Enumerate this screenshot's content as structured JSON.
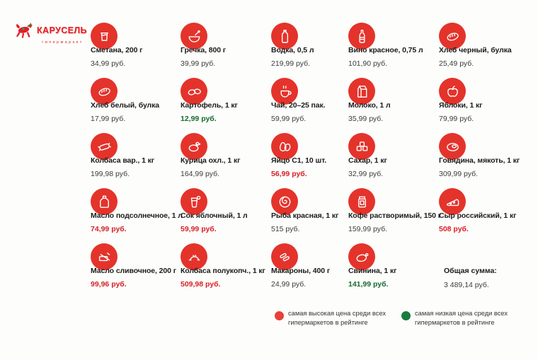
{
  "logo": {
    "brand": "КАРУСЕЛЬ",
    "subtitle": "гипермаркет"
  },
  "products": [
    {
      "name": "Сметана, 200 г",
      "price": "34,99 руб.",
      "status": "normal",
      "icon": "sour-cream"
    },
    {
      "name": "Гречка, 800 г",
      "price": "39,99 руб.",
      "status": "normal",
      "icon": "porridge-bowl"
    },
    {
      "name": "Водка, 0,5 л",
      "price": "219,99 руб.",
      "status": "normal",
      "icon": "vodka-bottle"
    },
    {
      "name": "Вино красное, 0,75 л",
      "price": "101,90 руб.",
      "status": "normal",
      "icon": "wine-bottle"
    },
    {
      "name": "Хлеб черный, булка",
      "price": "25,49 руб.",
      "status": "normal",
      "icon": "bread"
    },
    {
      "name": "Хлеб белый, булка",
      "price": "17,99 руб.",
      "status": "normal",
      "icon": "bread"
    },
    {
      "name": "Картофель, 1 кг",
      "price": "12,99 руб.",
      "status": "lowest",
      "icon": "potatoes"
    },
    {
      "name": "Чай, 20–25 пак.",
      "price": "59,99 руб.",
      "status": "normal",
      "icon": "tea-cup"
    },
    {
      "name": "Молоко, 1 л",
      "price": "35,99 руб.",
      "status": "normal",
      "icon": "milk-carton"
    },
    {
      "name": "Яблоки, 1 кг",
      "price": "79,99 руб.",
      "status": "normal",
      "icon": "apple"
    },
    {
      "name": "Колбаса вар., 1 кг",
      "price": "199,98 руб.",
      "status": "normal",
      "icon": "sausage"
    },
    {
      "name": "Курица охл., 1 кг",
      "price": "164,99 руб.",
      "status": "normal",
      "icon": "chicken"
    },
    {
      "name": "Яйцо С1, 10 шт.",
      "price": "56,99 руб.",
      "status": "highest",
      "icon": "eggs"
    },
    {
      "name": "Сахар, 1 кг",
      "price": "32,99 руб.",
      "status": "normal",
      "icon": "sugar-cubes"
    },
    {
      "name": "Говядина, мякоть, 1 кг",
      "price": "309,99 руб.",
      "status": "normal",
      "icon": "beef-steak"
    },
    {
      "name": "Масло подсолнечное, 1 л",
      "price": "74,99 руб.",
      "status": "highest",
      "icon": "oil-jug"
    },
    {
      "name": "Сок яблочный, 1 л",
      "price": "59,99 руб.",
      "status": "highest",
      "icon": "juice-glass"
    },
    {
      "name": "Рыба красная, 1 кг",
      "price": "515 руб.",
      "status": "normal",
      "icon": "fish-steak"
    },
    {
      "name": "Кофе растворимый, 150 г",
      "price": "159,99 руб.",
      "status": "normal",
      "icon": "coffee-jar"
    },
    {
      "name": "Сыр российский, 1 кг",
      "price": "508 руб.",
      "status": "highest",
      "icon": "cheese"
    },
    {
      "name": "Масло сливочное, 200 г",
      "price": "99,96 руб.",
      "status": "highest",
      "icon": "butter-knife"
    },
    {
      "name": "Колбаса полукопч., 1 кг",
      "price": "509,98 руб.",
      "status": "highest",
      "icon": "smoked-sausage"
    },
    {
      "name": "Макароны, 400 г",
      "price": "24,99 руб.",
      "status": "normal",
      "icon": "pasta"
    },
    {
      "name": "Свинина, 1 кг",
      "price": "141,99 руб.",
      "status": "lowest",
      "icon": "pork-ham"
    }
  ],
  "total": {
    "label": "Общая сумма:",
    "value": "3 489,14 руб."
  },
  "legend": [
    {
      "type": "highest",
      "label": "самая высокая цена среди всех гипермаркетов в рейтинге"
    },
    {
      "type": "lowest",
      "label": "самая низкая цена среди всех гипермаркетов в рейтинге"
    }
  ],
  "colors": {
    "brand_red": "#e31e24",
    "icon_circle_red": "#e4332b",
    "price_highest_red": "#d71f26",
    "price_lowest_green": "#17692f",
    "legend_red": "#e8403a",
    "legend_green": "#1b7a3f"
  }
}
